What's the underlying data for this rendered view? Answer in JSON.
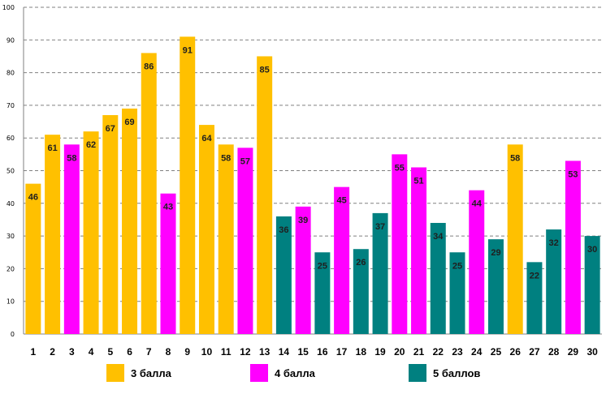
{
  "chart_data": {
    "type": "bar",
    "title": "",
    "xlabel": "",
    "ylabel": "",
    "ylim": [
      0,
      100
    ],
    "y_ticks": [
      0,
      10,
      20,
      30,
      40,
      50,
      60,
      70,
      80,
      90,
      100
    ],
    "grid": true,
    "categories": [
      "1",
      "2",
      "3",
      "4",
      "5",
      "6",
      "7",
      "8",
      "9",
      "10",
      "11",
      "12",
      "13",
      "14",
      "15",
      "16",
      "17",
      "18",
      "19",
      "20",
      "21",
      "22",
      "23",
      "24",
      "25",
      "26",
      "27",
      "28",
      "29",
      "30"
    ],
    "values": [
      46,
      61,
      58,
      62,
      67,
      69,
      86,
      43,
      91,
      64,
      58,
      57,
      85,
      36,
      39,
      25,
      45,
      26,
      37,
      55,
      51,
      34,
      25,
      44,
      29,
      58,
      22,
      32,
      53,
      30
    ],
    "groups": [
      3,
      3,
      4,
      3,
      3,
      3,
      3,
      4,
      3,
      3,
      3,
      4,
      3,
      5,
      4,
      5,
      4,
      5,
      5,
      4,
      4,
      5,
      5,
      4,
      5,
      3,
      5,
      5,
      4,
      5
    ],
    "legend": [
      {
        "group": 3,
        "label": "3 балла",
        "color": "#FFC000"
      },
      {
        "group": 4,
        "label": "4 балла",
        "color": "#FF00FF"
      },
      {
        "group": 5,
        "label": "5 баллов",
        "color": "#008080"
      }
    ],
    "legend_position": "bottom"
  }
}
